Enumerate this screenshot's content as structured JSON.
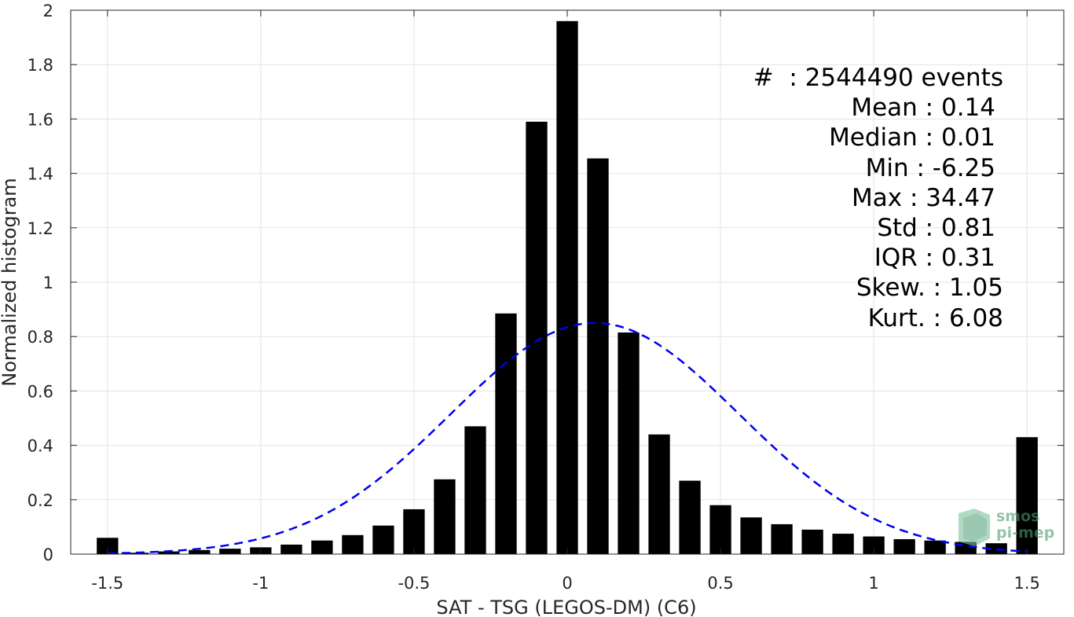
{
  "chart_data": {
    "type": "bar",
    "xlabel": "SAT - TSG (LEGOS-DM) (C6)",
    "ylabel": "Normalized histogram",
    "xlim": [
      -1.62,
      1.62
    ],
    "ylim": [
      0,
      2
    ],
    "xticks": [
      -1.5,
      -1,
      -0.5,
      0,
      0.5,
      1,
      1.5
    ],
    "xtick_labels": [
      "-1.5",
      "-1",
      "-0.5",
      "0",
      "0.5",
      "1",
      "1.5"
    ],
    "yticks": [
      0,
      0.2,
      0.4,
      0.6,
      0.8,
      1,
      1.2,
      1.4,
      1.6,
      1.8,
      2
    ],
    "ytick_labels": [
      "0",
      "0.2",
      "0.4",
      "0.6",
      "0.8",
      "1",
      "1.2",
      "1.4",
      "1.6",
      "1.8",
      "2"
    ],
    "grid": true,
    "bar_color": "#000000",
    "bar_width": 0.07,
    "x": [
      -1.5,
      -1.4,
      -1.3,
      -1.2,
      -1.1,
      -1.0,
      -0.9,
      -0.8,
      -0.7,
      -0.6,
      -0.5,
      -0.4,
      -0.3,
      -0.2,
      -0.1,
      0.0,
      0.1,
      0.2,
      0.3,
      0.4,
      0.5,
      0.6,
      0.7,
      0.8,
      0.9,
      1.0,
      1.1,
      1.2,
      1.3,
      1.4,
      1.5
    ],
    "values": [
      0.06,
      0.005,
      0.01,
      0.015,
      0.02,
      0.025,
      0.035,
      0.05,
      0.07,
      0.105,
      0.165,
      0.275,
      0.47,
      0.885,
      1.59,
      1.96,
      1.455,
      0.815,
      0.44,
      0.27,
      0.18,
      0.135,
      0.11,
      0.09,
      0.075,
      0.065,
      0.055,
      0.05,
      0.045,
      0.04,
      0.43
    ],
    "fit_curve": {
      "style": "dashed",
      "color": "#0000ee",
      "mean": 0.09,
      "std": 0.47,
      "peak": 0.85,
      "x_range": [
        -1.5,
        1.5
      ]
    }
  },
  "stats": {
    "events": "#  : 2544490 events",
    "mean": "Mean : 0.14",
    "median": "Median : 0.01",
    "min": "Min : -6.25",
    "max": "Max : 34.47",
    "std": "Std : 0.81",
    "iqr": "IQR : 0.31",
    "skew": "Skew. : 1.05",
    "kurt": "Kurt. : 6.08"
  },
  "logo": {
    "line1": "smos",
    "line2": "pi-mep",
    "color": "#4f9a72"
  }
}
